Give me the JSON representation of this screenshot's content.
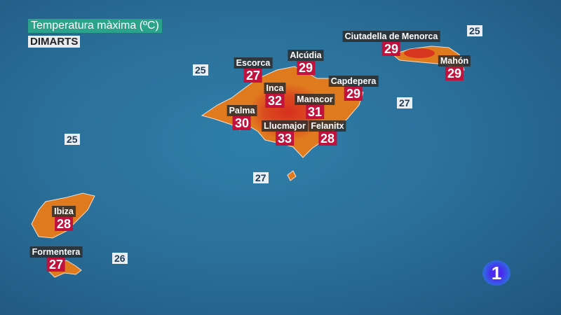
{
  "header": {
    "title": "Temperatura màxima (ºC)",
    "day": "DIMARTS"
  },
  "colors": {
    "land_hot": "#d9361f",
    "land_warm": "#e07a1f",
    "label_value_bg": "#c0123c",
    "sea": "#2a6f99",
    "title_bg": "#2aa38a"
  },
  "cities": [
    {
      "name": "Ciutadella de Menorca",
      "value": "29"
    },
    {
      "name": "Mahón",
      "value": "29"
    },
    {
      "name": "Escorca",
      "value": "27"
    },
    {
      "name": "Alcúdia",
      "value": "29"
    },
    {
      "name": "Capdepera",
      "value": "29"
    },
    {
      "name": "Inca",
      "value": "32"
    },
    {
      "name": "Manacor",
      "value": "31"
    },
    {
      "name": "Palma",
      "value": "30"
    },
    {
      "name": "Llucmajor",
      "value": "33"
    },
    {
      "name": "Felanitx",
      "value": "28"
    },
    {
      "name": "Ibiza",
      "value": "28"
    },
    {
      "name": "Formentera",
      "value": "27"
    }
  ],
  "sea_temps": [
    "25",
    "25",
    "27",
    "25",
    "27",
    "26"
  ],
  "logo": {
    "text": "1"
  }
}
